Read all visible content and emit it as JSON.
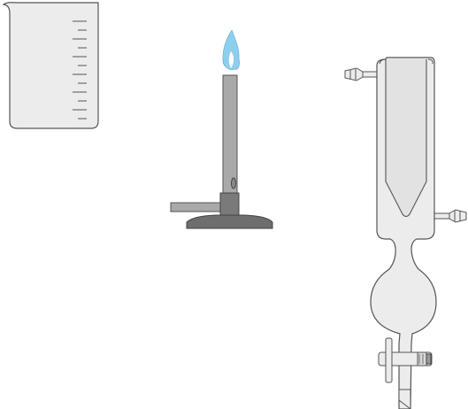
{
  "items": [
    {
      "name": "beaker",
      "icon": "beaker-icon",
      "graduation_marks": 12
    },
    {
      "name": "bunsen-burner",
      "icon": "bunsen-burner-icon",
      "flame_color": "#8ecfee"
    },
    {
      "name": "condenser-with-bulb-and-stopcock",
      "icon": "glassware-icon"
    }
  ],
  "colors": {
    "background": "#ffffff",
    "glass_fill": "#ececec",
    "glass_stroke": "#555555",
    "metal_light": "#a9a9a9",
    "metal_dark": "#6e6e6e",
    "flame_outer": "#8ecfee",
    "flame_inner": "#ffffff"
  }
}
